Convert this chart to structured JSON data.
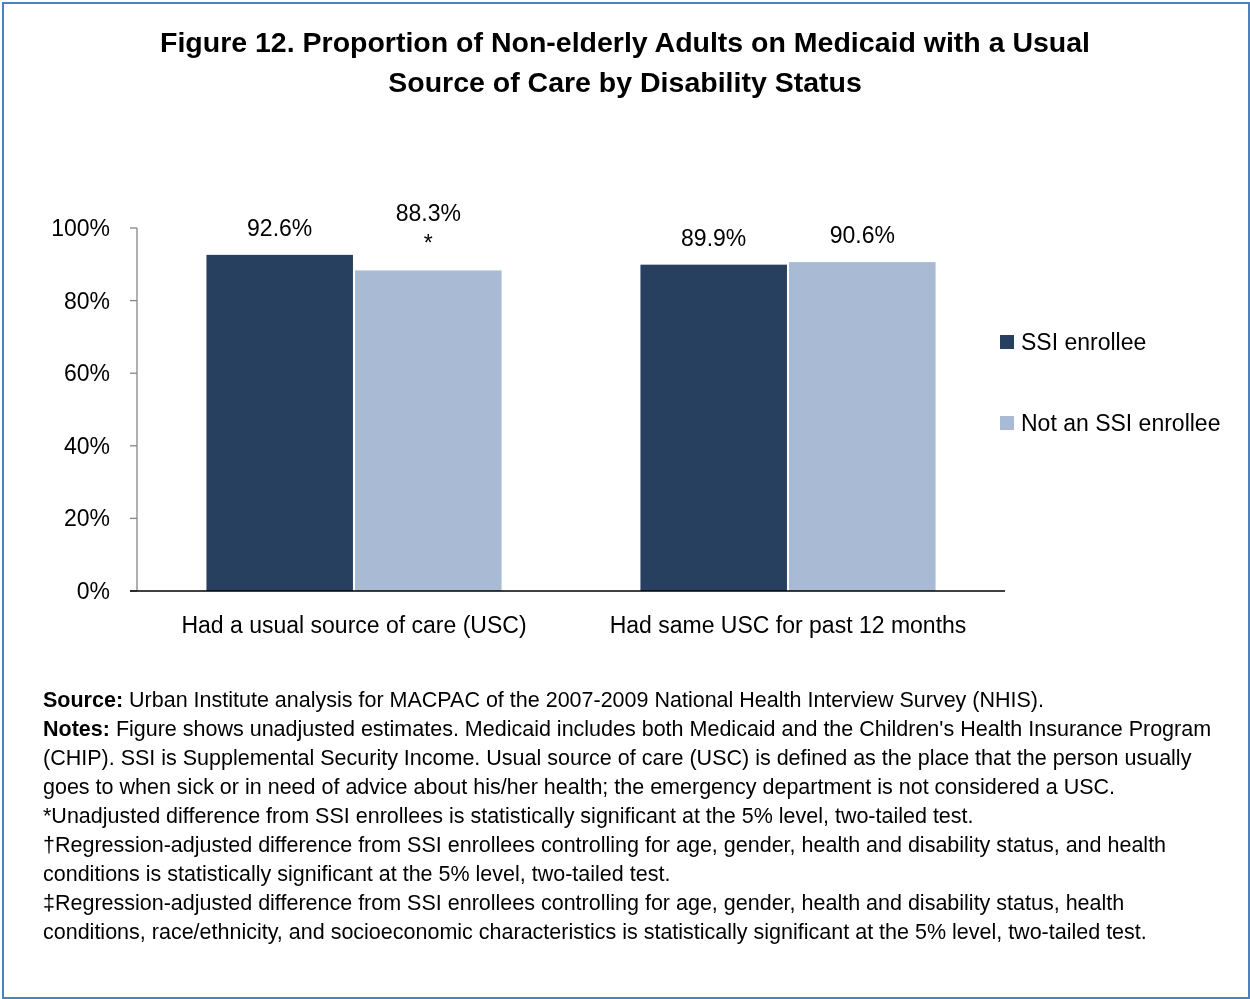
{
  "chart_data": {
    "type": "bar",
    "title": "Figure 12. Proportion of Non-elderly Adults on Medicaid with a Usual Source of Care by Disability Status",
    "categories": [
      "Had a usual source of care (USC)",
      "Had same USC for past 12 months"
    ],
    "series": [
      {
        "name": "SSI enrollee",
        "color": "#27405f",
        "values": [
          92.6,
          89.9
        ],
        "value_labels": [
          "92.6%",
          "89.9%"
        ]
      },
      {
        "name": "Not an SSI enrollee",
        "color": "#a9bad4",
        "values": [
          88.3,
          90.6
        ],
        "value_labels": [
          "88.3%\n*",
          "90.6%"
        ]
      }
    ],
    "ylim": [
      0,
      100
    ],
    "yticks": [
      {
        "value": 0,
        "label": "0%"
      },
      {
        "value": 20,
        "label": "20%"
      },
      {
        "value": 40,
        "label": "40%"
      },
      {
        "value": 60,
        "label": "60%"
      },
      {
        "value": 80,
        "label": "80%"
      },
      {
        "value": 100,
        "label": "100%"
      }
    ],
    "legend": "right",
    "annotations": [
      "Source: Urban Institute analysis for MACPAC of the 2007-2009 National Health Interview Survey (NHIS).",
      "Notes: Figure shows unadjusted estimates. Medicaid includes both Medicaid and the Children's Health Insurance Program (CHIP). SSI is Supplemental Security Income. Usual source of care (USC) is defined as the place that the person usually goes to when sick or in need of advice about his/her health; the emergency department is not considered a USC.",
      "*Unadjusted difference from SSI enrollees is statistically significant at the 5% level, two-tailed test.",
      "†Regression-adjusted difference from SSI enrollees controlling for age, gender, health and disability status, and health conditions is statistically significant at the 5% level, two-tailed test.",
      "‡Regression-adjusted difference from SSI enrollees controlling for age, gender, health and disability status, health conditions, race/ethnicity, and socioeconomic characteristics is statistically significant at the 5% level, two-tailed test."
    ]
  }
}
